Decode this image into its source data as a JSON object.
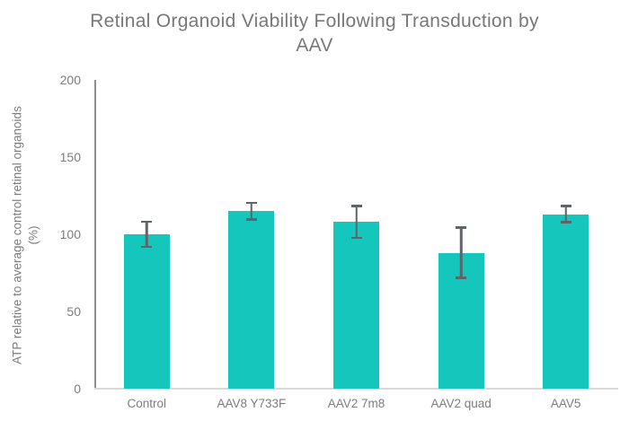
{
  "chart_data": {
    "type": "bar",
    "title": "Retinal Organoid Viability Following Transduction by\nAAV",
    "ylabel": "ATP relative to average control retinal organoids\n(%)",
    "xlabel": "",
    "categories": [
      "Control",
      "AAV8 Y733F",
      "AAV2 7m8",
      "AAV2 quad",
      "AAV5"
    ],
    "values": [
      100,
      115,
      108,
      88,
      113
    ],
    "error_bars": [
      9,
      6,
      11,
      17,
      6
    ],
    "ylim": [
      0,
      200
    ],
    "yticks": [
      0,
      50,
      100,
      150,
      200
    ],
    "grid": false,
    "legend": false,
    "colors": {
      "bar": "#14C6BB",
      "error_bar": "#5F6468",
      "y_axis_line": "#8f8f8f",
      "x_axis_line": "#d9d9d9",
      "title_text": "#787878",
      "tick_text": "#7d7d7d"
    }
  }
}
